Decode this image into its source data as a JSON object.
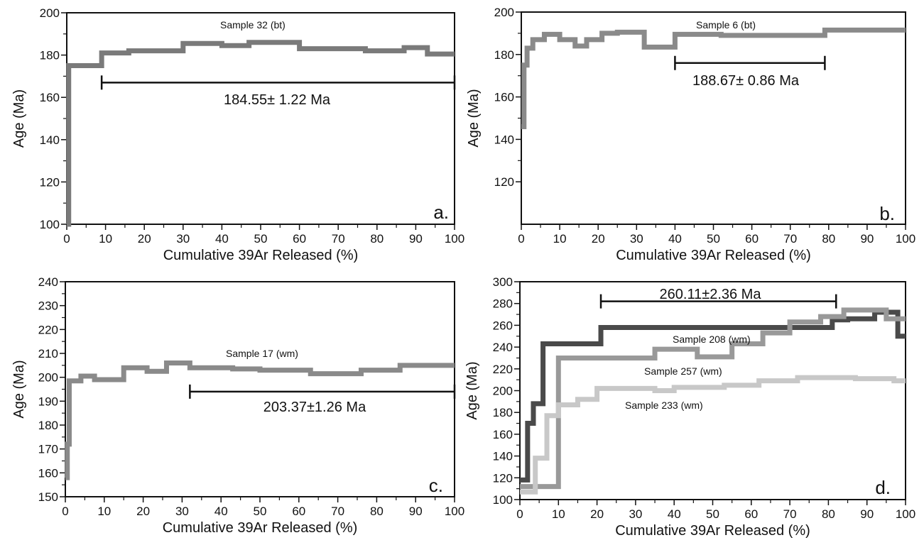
{
  "colors": {
    "frame": "#111111",
    "sample_32": "#7a7a7a",
    "sample_6": "#8a8a8a",
    "sample_17": "#8a8a8a",
    "sample_208": "#4a4a4a",
    "sample_257": "#999999",
    "sample_233": "#c8c8c8",
    "plateau_bar": "#111111"
  },
  "chart_data": [
    {
      "type": "line",
      "step": true,
      "panel_label": "a.",
      "xlabel": "Cumulative 39Ar Released (%)",
      "ylabel": "Age (Ma)",
      "xlim": [
        0,
        100
      ],
      "ylim": [
        100,
        200
      ],
      "xticks": [
        0,
        10,
        20,
        30,
        40,
        50,
        60,
        70,
        80,
        90,
        100
      ],
      "yticks": [
        100,
        120,
        140,
        160,
        180,
        200
      ],
      "grid": false,
      "series": [
        {
          "name": "Sample 32 (bt)",
          "color_key": "sample_32",
          "steps": [
            [
              0,
              0.5,
              100
            ],
            [
              0.5,
              9,
              175
            ],
            [
              9,
              16,
              181
            ],
            [
              16,
              30,
              182
            ],
            [
              30,
              40,
              185.5
            ],
            [
              40,
              47,
              184.5
            ],
            [
              47,
              60,
              186
            ],
            [
              60,
              68,
              183
            ],
            [
              68,
              77,
              183
            ],
            [
              77,
              87,
              182
            ],
            [
              87,
              93,
              183.5
            ],
            [
              93,
              100,
              180.5
            ]
          ]
        }
      ],
      "plateau": {
        "x_start": 9,
        "x_end": 100,
        "y": 167,
        "label": "184.55± 1.22 Ma"
      }
    },
    {
      "type": "line",
      "step": true,
      "panel_label": "b.",
      "xlabel": "Cumulative 39Ar Released (%)",
      "ylabel": "Age (Ma)",
      "xlim": [
        0,
        100
      ],
      "ylim": [
        100,
        200
      ],
      "xticks": [
        0,
        10,
        20,
        30,
        40,
        50,
        60,
        70,
        80,
        90,
        100
      ],
      "yticks": [
        120,
        140,
        160,
        180,
        200
      ],
      "grid": false,
      "series": [
        {
          "name": "Sample 6 (bt)",
          "color_key": "sample_6",
          "steps": [
            [
              0,
              0.7,
              146
            ],
            [
              0.7,
              1.5,
              175
            ],
            [
              1.5,
              3,
              183
            ],
            [
              3,
              6,
              187
            ],
            [
              6,
              10,
              189.5
            ],
            [
              10,
              14,
              187
            ],
            [
              14,
              17,
              184
            ],
            [
              17,
              21,
              187
            ],
            [
              21,
              25,
              190
            ],
            [
              25,
              32,
              190.5
            ],
            [
              32,
              40,
              183.5
            ],
            [
              40,
              52,
              189.5
            ],
            [
              52,
              79,
              189
            ],
            [
              79,
              100,
              191.5
            ]
          ]
        }
      ],
      "plateau": {
        "x_start": 40,
        "x_end": 79,
        "y": 176,
        "label": "188.67± 0.86 Ma"
      }
    },
    {
      "type": "line",
      "step": true,
      "panel_label": "c.",
      "xlabel": "Cumulative 39Ar Released (%)",
      "ylabel": "Age (Ma)",
      "xlim": [
        0,
        100
      ],
      "ylim": [
        150,
        240
      ],
      "xticks": [
        0,
        10,
        20,
        30,
        40,
        50,
        60,
        70,
        80,
        90,
        100
      ],
      "yticks": [
        150,
        160,
        170,
        180,
        190,
        200,
        210,
        220,
        230,
        240
      ],
      "grid": false,
      "series": [
        {
          "name": "Sample 17 (wm)",
          "color_key": "sample_17",
          "steps": [
            [
              0,
              0.5,
              158
            ],
            [
              0.5,
              1,
              172
            ],
            [
              1,
              4,
              198.5
            ],
            [
              4,
              7.5,
              200.5
            ],
            [
              7.5,
              15,
              199
            ],
            [
              15,
              21,
              204
            ],
            [
              21,
              26,
              202.5
            ],
            [
              26,
              32,
              206
            ],
            [
              32,
              43,
              204
            ],
            [
              43,
              50,
              203.5
            ],
            [
              50,
              63,
              203
            ],
            [
              63,
              76,
              201.5
            ],
            [
              76,
              86,
              203
            ],
            [
              86,
              100,
              205
            ]
          ]
        }
      ],
      "plateau": {
        "x_start": 32,
        "x_end": 100,
        "y": 194,
        "label": "203.37±1.26 Ma"
      }
    },
    {
      "type": "line",
      "step": true,
      "panel_label": "d.",
      "xlabel": "Cumulative 39Ar Released (%)",
      "ylabel": "Age (Ma)",
      "xlim": [
        0,
        100
      ],
      "ylim": [
        100,
        300
      ],
      "xticks": [
        0,
        10,
        20,
        30,
        40,
        50,
        60,
        70,
        80,
        90,
        100
      ],
      "yticks": [
        100,
        120,
        140,
        160,
        180,
        200,
        220,
        240,
        260,
        280,
        300
      ],
      "grid": false,
      "series": [
        {
          "name": "Sample 208 (wm)",
          "color_key": "sample_208",
          "steps": [
            [
              0,
              2,
              118
            ],
            [
              2,
              3.5,
              170
            ],
            [
              3.5,
              6,
              188
            ],
            [
              6,
              21,
              243
            ],
            [
              21,
              81,
              258
            ],
            [
              81,
              85,
              265
            ],
            [
              85,
              92,
              266
            ],
            [
              92,
              98,
              272
            ],
            [
              98,
              100,
              250
            ]
          ]
        },
        {
          "name": "Sample 257 (wm)",
          "color_key": "sample_257",
          "steps": [
            [
              0,
              10,
              112
            ],
            [
              10,
              35,
              230
            ],
            [
              35,
              46,
              238
            ],
            [
              46,
              55,
              231
            ],
            [
              55,
              63,
              243
            ],
            [
              63,
              70,
              253
            ],
            [
              70,
              78,
              263
            ],
            [
              78,
              84,
              268
            ],
            [
              84,
              95,
              274
            ],
            [
              95,
              100,
              266
            ]
          ]
        },
        {
          "name": "Sample 233 (wm)",
          "color_key": "sample_233",
          "steps": [
            [
              0,
              4,
              107
            ],
            [
              4,
              7,
              138
            ],
            [
              7,
              10,
              177
            ],
            [
              10,
              15,
              187
            ],
            [
              15,
              20,
              192
            ],
            [
              20,
              35,
              202
            ],
            [
              35,
              40,
              200
            ],
            [
              40,
              53,
              203
            ],
            [
              53,
              62,
              205
            ],
            [
              62,
              72,
              209
            ],
            [
              72,
              87,
              212
            ],
            [
              87,
              97,
              211
            ],
            [
              97,
              100,
              209
            ]
          ]
        }
      ],
      "plateau": {
        "x_start": 21,
        "x_end": 82,
        "y": 282,
        "label": "260.11±2.36 Ma"
      }
    }
  ]
}
